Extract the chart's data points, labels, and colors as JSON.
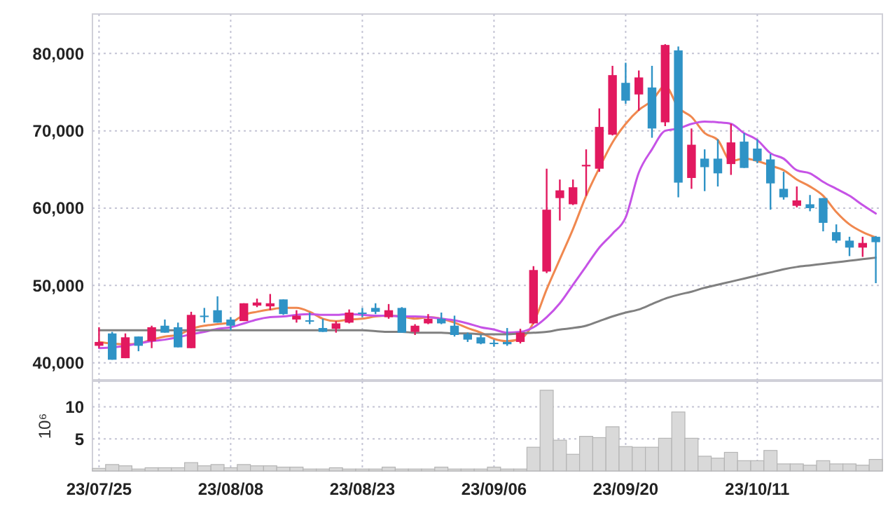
{
  "chart_data": [
    {
      "type": "candlestick",
      "categories": [
        null,
        null,
        null,
        null,
        null,
        null,
        null,
        null,
        null,
        null,
        null,
        null,
        null,
        null,
        null,
        null,
        null,
        null,
        null,
        null,
        null,
        null,
        null,
        null,
        null,
        null,
        null,
        null,
        null,
        null,
        null,
        null,
        null,
        null,
        null,
        null,
        null,
        null,
        null,
        null,
        null,
        null,
        null,
        null,
        null,
        null,
        null,
        null,
        null,
        null,
        null,
        null,
        null,
        null,
        null,
        null,
        null,
        null,
        null,
        null
      ],
      "ohlc": [
        [
          42200,
          44600,
          41900,
          42700
        ],
        [
          43800,
          44000,
          40400,
          40400
        ],
        [
          40600,
          43800,
          40600,
          43300
        ],
        [
          43400,
          43400,
          41500,
          42200
        ],
        [
          42800,
          44800,
          41900,
          44600
        ],
        [
          44800,
          45600,
          43900,
          43900
        ],
        [
          44600,
          45200,
          42000,
          42000
        ],
        [
          41900,
          46600,
          41900,
          46200
        ],
        [
          46100,
          47100,
          45200,
          46000
        ],
        [
          46800,
          48600,
          45200,
          45200
        ],
        [
          45600,
          45900,
          44200,
          44800
        ],
        [
          45400,
          47700,
          45400,
          47700
        ],
        [
          47400,
          48300,
          47200,
          47800
        ],
        [
          47300,
          48900,
          46800,
          47700
        ],
        [
          48200,
          48200,
          46200,
          46300
        ],
        [
          45600,
          46800,
          45200,
          46100
        ],
        [
          45500,
          46500,
          45000,
          45400
        ],
        [
          44500,
          45700,
          44000,
          44000
        ],
        [
          44400,
          45400,
          43900,
          45100
        ],
        [
          45200,
          46900,
          45100,
          46500
        ],
        [
          46500,
          47100,
          45900,
          46400
        ],
        [
          47100,
          47700,
          46300,
          46600
        ],
        [
          45900,
          47600,
          45700,
          46800
        ],
        [
          47100,
          47200,
          43900,
          43900
        ],
        [
          44000,
          45000,
          43600,
          44800
        ],
        [
          45100,
          46300,
          45000,
          45700
        ],
        [
          45700,
          46500,
          45000,
          45100
        ],
        [
          44800,
          46100,
          43400,
          43600
        ],
        [
          43700,
          43900,
          42700,
          43000
        ],
        [
          43300,
          43600,
          42400,
          42500
        ],
        [
          42600,
          43000,
          42100,
          42500
        ],
        [
          42700,
          44500,
          42200,
          42400
        ],
        [
          42700,
          44400,
          42500,
          43900
        ],
        [
          45100,
          52500,
          45000,
          52000
        ],
        [
          51800,
          65100,
          51600,
          59800
        ],
        [
          61300,
          63700,
          58400,
          62300
        ],
        [
          60500,
          63700,
          60400,
          62700
        ],
        [
          65400,
          67600,
          61600,
          65600
        ],
        [
          65100,
          72900,
          64700,
          70500
        ],
        [
          69500,
          78400,
          69400,
          77200
        ],
        [
          76200,
          78800,
          73500,
          73900
        ],
        [
          74700,
          77800,
          72600,
          76900
        ],
        [
          75600,
          78400,
          69100,
          70300
        ],
        [
          71100,
          81200,
          70600,
          81100
        ],
        [
          80400,
          80900,
          61400,
          63300
        ],
        [
          63900,
          70300,
          62500,
          68200
        ],
        [
          66400,
          67600,
          62200,
          65300
        ],
        [
          66400,
          68900,
          62800,
          64500
        ],
        [
          65700,
          70900,
          64300,
          68500
        ],
        [
          68600,
          69700,
          65200,
          65200
        ],
        [
          67700,
          68900,
          65800,
          66100
        ],
        [
          66300,
          67000,
          59800,
          63200
        ],
        [
          62500,
          64700,
          61100,
          61400
        ],
        [
          60300,
          62800,
          60100,
          61000
        ],
        [
          60500,
          61700,
          59600,
          60000
        ],
        [
          61300,
          61300,
          57000,
          58100
        ],
        [
          56900,
          57900,
          55500,
          55800
        ],
        [
          55800,
          56300,
          53800,
          54900
        ],
        [
          54900,
          56300,
          53700,
          55500
        ],
        [
          56300,
          56400,
          50300,
          55600
        ]
      ],
      "colors": [
        "#e2195f",
        "#2f93c6",
        "#e2195f",
        "#2f93c6",
        "#e2195f",
        "#2f93c6",
        "#2f93c6",
        "#e2195f",
        "#2f93c6",
        "#2f93c6",
        "#2f93c6",
        "#e2195f",
        "#e2195f",
        "#e2195f",
        "#2f93c6",
        "#e2195f",
        "#2f93c6",
        "#2f93c6",
        "#e2195f",
        "#e2195f",
        "#2f93c6",
        "#2f93c6",
        "#e2195f",
        "#2f93c6",
        "#e2195f",
        "#e2195f",
        "#2f93c6",
        "#2f93c6",
        "#2f93c6",
        "#2f93c6",
        "#2f93c6",
        "#2f93c6",
        "#e2195f",
        "#e2195f",
        "#e2195f",
        "#e2195f",
        "#e2195f",
        "#e2195f",
        "#e2195f",
        "#e2195f",
        "#2f93c6",
        "#e2195f",
        "#2f93c6",
        "#e2195f",
        "#2f93c6",
        "#e2195f",
        "#2f93c6",
        "#2f93c6",
        "#e2195f",
        "#2f93c6",
        "#2f93c6",
        "#2f93c6",
        "#2f93c6",
        "#e2195f",
        "#2f93c6",
        "#2f93c6",
        "#2f93c6",
        "#2f93c6",
        "#e2195f",
        "#2f93c6"
      ],
      "series": [
        {
          "type": "line",
          "color": "#f0884f",
          "values": [
            42700,
            42500,
            42400,
            42500,
            43000,
            43400,
            43600,
            44400,
            44800,
            45000,
            45200,
            46200,
            46600,
            46900,
            47100,
            47100,
            46600,
            45700,
            45400,
            45600,
            45700,
            46000,
            46100,
            46000,
            45700,
            45900,
            45700,
            45200,
            44500,
            43900,
            43100,
            42800,
            43100,
            45200,
            49500,
            53400,
            57300,
            61600,
            65200,
            68500,
            70900,
            72700,
            73900,
            75800,
            73000,
            71800,
            69700,
            68800,
            66100,
            66400,
            66100,
            65500,
            64900,
            63700,
            62800,
            61600,
            59500,
            57900,
            56900,
            56200
          ]
        },
        {
          "type": "line",
          "color": "#c653e6",
          "values": [
            41900,
            42000,
            42200,
            42500,
            42800,
            43000,
            43300,
            43700,
            44000,
            44400,
            44600,
            45100,
            45600,
            45900,
            46000,
            46200,
            46300,
            46200,
            46200,
            46300,
            46200,
            46100,
            46100,
            46000,
            46000,
            45900,
            45700,
            45500,
            45100,
            44600,
            44300,
            43900,
            44000,
            44600,
            45900,
            47700,
            50100,
            52500,
            54900,
            56700,
            58800,
            64600,
            67600,
            70000,
            70300,
            70900,
            71200,
            71100,
            70900,
            69700,
            68800,
            67100,
            66400,
            64900,
            64500,
            63400,
            62500,
            61600,
            60400,
            59300
          ]
        },
        {
          "type": "line",
          "color": "#808080",
          "values": [
            44200,
            44200,
            44200,
            44200,
            44200,
            44200,
            44200,
            44200,
            44200,
            44200,
            44200,
            44200,
            44200,
            44200,
            44200,
            44200,
            44200,
            44200,
            44200,
            44200,
            44200,
            44100,
            44000,
            44000,
            43900,
            43900,
            43900,
            43800,
            43800,
            43700,
            43700,
            43700,
            43800,
            43900,
            44000,
            44300,
            44500,
            44800,
            45400,
            46000,
            46500,
            46900,
            47600,
            48300,
            48800,
            49200,
            49700,
            50100,
            50500,
            50900,
            51300,
            51700,
            52100,
            52400,
            52600,
            52800,
            53000,
            53200,
            53400,
            53600
          ]
        }
      ],
      "ylim": [
        37800,
        85100
      ],
      "yticks": [
        {
          "value": 40000,
          "label": "40,000"
        },
        {
          "value": 50000,
          "label": "50,000"
        },
        {
          "value": 60000,
          "label": "60,000"
        },
        {
          "value": 70000,
          "label": "70,000"
        },
        {
          "value": 80000,
          "label": "80,000"
        }
      ],
      "grid": true,
      "tick_labels": "y"
    },
    {
      "type": "bar",
      "ylabel": "10⁶",
      "categories": [
        "23/07/25",
        null,
        null,
        null,
        null,
        null,
        null,
        null,
        null,
        null,
        "23/08/08",
        null,
        null,
        null,
        null,
        null,
        null,
        null,
        null,
        null,
        "23/08/23",
        null,
        null,
        null,
        null,
        null,
        null,
        null,
        null,
        null,
        "23/09/06",
        null,
        null,
        null,
        null,
        null,
        null,
        null,
        null,
        null,
        "23/09/20",
        null,
        null,
        null,
        null,
        null,
        null,
        null,
        null,
        null,
        "23/10/11",
        null,
        null,
        null,
        null,
        null,
        null,
        null,
        null,
        null
      ],
      "values": [
        0.4,
        1.0,
        0.8,
        0.3,
        0.5,
        0.5,
        0.5,
        1.3,
        0.8,
        1.0,
        0.5,
        1.0,
        0.8,
        0.8,
        0.6,
        0.6,
        0.3,
        0.3,
        0.5,
        0.3,
        0.3,
        0.3,
        0.6,
        0.3,
        0.3,
        0.3,
        0.6,
        0.3,
        0.3,
        0.3,
        0.6,
        0.3,
        0.3,
        3.7,
        12.6,
        4.8,
        2.6,
        5.4,
        5.2,
        6.9,
        3.8,
        3.7,
        3.7,
        5.1,
        9.2,
        5.1,
        2.3,
        2.0,
        2.9,
        1.6,
        1.6,
        3.2,
        1.1,
        1.1,
        0.9,
        1.6,
        1.1,
        1.1,
        0.9,
        1.8
      ],
      "color": "#d9d9d9",
      "ylim": [
        0,
        14
      ],
      "yticks": [
        5,
        10
      ],
      "grid": true
    }
  ]
}
